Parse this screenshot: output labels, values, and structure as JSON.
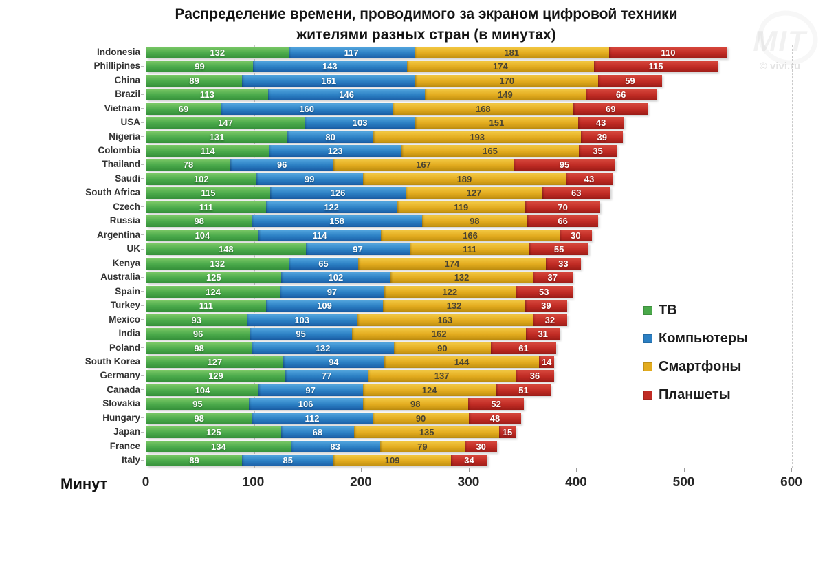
{
  "title": {
    "line1": "Распределение времени, проводимого за экраном цифровой техники",
    "line2": "жителями разных стран (в минутах)"
  },
  "watermark": {
    "logo": "MIT",
    "credit": "© vivi.ru"
  },
  "axis": {
    "label": "Минут",
    "ticks": [
      0,
      100,
      200,
      300,
      400,
      500,
      600
    ]
  },
  "chart_data": {
    "type": "bar",
    "stacked": true,
    "orientation": "horizontal",
    "title": "Распределение времени, проводимого за экраном цифровой техники жителями разных стран (в минутах)",
    "xlabel": "Минут",
    "xlim": [
      0,
      600
    ],
    "xticks": [
      0,
      100,
      200,
      300,
      400,
      500,
      600
    ],
    "grid": "vertical-dashed",
    "legend_position": "right",
    "categories": [
      "Indonesia",
      "Phillipines",
      "China",
      "Brazil",
      "Vietnam",
      "USA",
      "Nigeria",
      "Colombia",
      "Thailand",
      "Saudi",
      "South Africa",
      "Czech",
      "Russia",
      "Argentina",
      "UK",
      "Kenya",
      "Australia",
      "Spain",
      "Turkey",
      "Mexico",
      "India",
      "Poland",
      "South Korea",
      "Germany",
      "Canada",
      "Slovakia",
      "Hungary",
      "Japan",
      "France",
      "Italy"
    ],
    "series": [
      {
        "name": "ТВ",
        "color": "#4aa94a",
        "gradient": [
          "#7cc966",
          "#35903a"
        ],
        "label_color": "#ffffff",
        "values": [
          132,
          99,
          89,
          113,
          69,
          147,
          131,
          114,
          78,
          102,
          115,
          111,
          98,
          104,
          148,
          132,
          125,
          124,
          111,
          93,
          96,
          98,
          127,
          129,
          104,
          95,
          98,
          125,
          134,
          89
        ]
      },
      {
        "name": "Компьютеры",
        "color": "#2b7fc3",
        "gradient": [
          "#55a8e0",
          "#1a5ea6"
        ],
        "label_color": "#ffffff",
        "values": [
          117,
          143,
          161,
          146,
          160,
          103,
          80,
          123,
          96,
          99,
          126,
          122,
          158,
          114,
          97,
          65,
          102,
          97,
          109,
          103,
          95,
          132,
          94,
          77,
          97,
          106,
          112,
          68,
          83,
          85
        ]
      },
      {
        "name": "Смартфоны",
        "color": "#e2ab1e",
        "gradient": [
          "#f4ca45",
          "#bf8e10"
        ],
        "label_color": "#4a4432",
        "values": [
          181,
          174,
          170,
          149,
          168,
          151,
          193,
          165,
          167,
          189,
          127,
          119,
          98,
          166,
          111,
          174,
          132,
          122,
          132,
          163,
          162,
          90,
          144,
          137,
          124,
          98,
          90,
          135,
          79,
          109
        ]
      },
      {
        "name": "Планшеты",
        "color": "#c02b24",
        "gradient": [
          "#d8493e",
          "#9e1d18"
        ],
        "label_color": "#ffffff",
        "values": [
          110,
          115,
          59,
          66,
          69,
          43,
          39,
          35,
          95,
          43,
          63,
          70,
          66,
          30,
          55,
          33,
          37,
          53,
          39,
          32,
          31,
          61,
          14,
          36,
          51,
          52,
          48,
          15,
          30,
          34
        ]
      }
    ]
  }
}
